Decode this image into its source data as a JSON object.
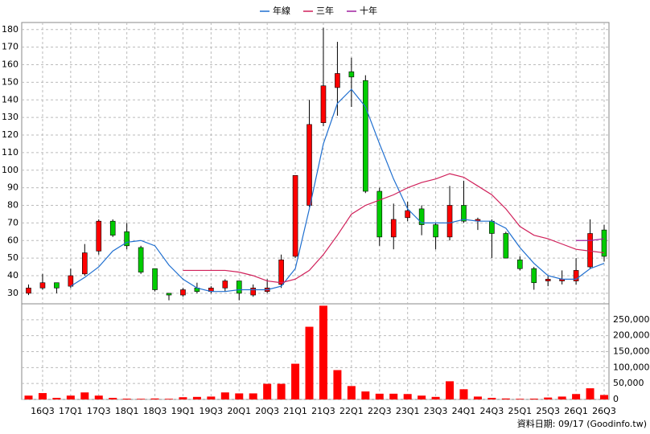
{
  "chart_data": [
    {
      "type": "candlestick",
      "categories": [
        null,
        "16Q3",
        null,
        "17Q1",
        null,
        "17Q3",
        null,
        "18Q1",
        null,
        "18Q3",
        null,
        "19Q1",
        null,
        "19Q3",
        null,
        "20Q1",
        null,
        "20Q3",
        null,
        "21Q1",
        null,
        "21Q3",
        null,
        "22Q1",
        null,
        "22Q3",
        null,
        "23Q1",
        null,
        "23Q3",
        null,
        "24Q1",
        null,
        "24Q3",
        null,
        "25Q1",
        null,
        "25Q3",
        null,
        "26Q1",
        null,
        "26Q3"
      ],
      "open": [
        30,
        33,
        36,
        34,
        41,
        54,
        71,
        65,
        56,
        44,
        30,
        29,
        33,
        31,
        33,
        37,
        29,
        31,
        35,
        51,
        80,
        127,
        147,
        156,
        151,
        88,
        62,
        73,
        78,
        69,
        62,
        80,
        71,
        71,
        64,
        49,
        44,
        37,
        37,
        37,
        45,
        66
      ],
      "high": [
        35,
        41,
        36,
        44,
        58,
        72,
        72,
        70,
        57,
        44,
        30,
        33,
        36,
        34,
        38,
        37,
        35,
        38,
        52,
        97,
        140,
        181,
        173,
        164,
        154,
        90,
        81,
        82,
        80,
        70,
        91,
        94,
        73,
        72,
        65,
        51,
        45,
        40,
        43,
        50,
        72,
        69
      ],
      "low": [
        29,
        32,
        30,
        33,
        40,
        52,
        62,
        55,
        41,
        31,
        26,
        28,
        30,
        30,
        31,
        26,
        28,
        30,
        33,
        50,
        79,
        125,
        131,
        136,
        87,
        57,
        55,
        71,
        63,
        55,
        60,
        70,
        66,
        50,
        50,
        43,
        32,
        34,
        35,
        35,
        44,
        48
      ],
      "close": [
        33,
        36,
        33,
        40,
        53,
        71,
        63,
        57,
        42,
        32,
        29,
        32,
        31,
        33,
        37,
        30,
        33,
        33,
        49,
        97,
        126,
        148,
        155,
        153,
        88,
        62,
        72,
        77,
        69,
        62,
        80,
        71,
        72,
        64,
        50,
        44,
        36,
        38,
        38,
        43,
        64,
        51
      ],
      "up_color": "#ff0000",
      "down_color": "#00cc00",
      "series": [
        {
          "name": "年線",
          "color": "#1f6fd0",
          "values": [
            null,
            null,
            null,
            34,
            39,
            45,
            54,
            59,
            60,
            57,
            46,
            38,
            33,
            31,
            31,
            32,
            32,
            32,
            34,
            44,
            78,
            115,
            138,
            146,
            136,
            115,
            95,
            78,
            70,
            70,
            70,
            72,
            71,
            71,
            67,
            56,
            47,
            40,
            38,
            38,
            44,
            47
          ]
        },
        {
          "name": "三年",
          "color": "#d0205a",
          "values": [
            null,
            null,
            null,
            null,
            null,
            null,
            null,
            null,
            null,
            null,
            null,
            43,
            43,
            43,
            43,
            42,
            40,
            37,
            36,
            38,
            43,
            52,
            63,
            75,
            80,
            83,
            86,
            90,
            93,
            95,
            98,
            96,
            91,
            86,
            78,
            68,
            63,
            61,
            58,
            55,
            54,
            53
          ]
        },
        {
          "name": "十年",
          "color": "#a020a0",
          "values": [
            null,
            null,
            null,
            null,
            null,
            null,
            null,
            null,
            null,
            null,
            null,
            null,
            null,
            null,
            null,
            null,
            null,
            null,
            null,
            null,
            null,
            null,
            null,
            null,
            null,
            null,
            null,
            null,
            null,
            null,
            null,
            null,
            null,
            null,
            null,
            null,
            null,
            null,
            null,
            60,
            60,
            61
          ]
        }
      ],
      "ylim": [
        24,
        184
      ],
      "yticks": [
        30,
        40,
        50,
        60,
        70,
        80,
        90,
        100,
        110,
        120,
        130,
        140,
        150,
        160,
        170,
        180
      ],
      "grid": true
    },
    {
      "type": "bar",
      "color": "#ff0000",
      "values": [
        12000,
        20000,
        5000,
        12000,
        22000,
        12000,
        5000,
        2500,
        2000,
        3000,
        2000,
        7000,
        8000,
        9000,
        22000,
        19000,
        19000,
        49000,
        49000,
        112000,
        228000,
        294000,
        92000,
        42000,
        25000,
        18000,
        18000,
        17000,
        12000,
        8000,
        57000,
        32000,
        9000,
        5000,
        3000,
        2000,
        2500,
        6000,
        9000,
        17000,
        35000,
        14000
      ],
      "ylim": [
        0,
        300000
      ],
      "yticks": [
        0,
        {
          "value": 50000,
          "label": "50,000"
        },
        {
          "value": 100000,
          "label": "100,000"
        },
        {
          "value": 150000,
          "label": "150,000"
        },
        {
          "value": 200000,
          "label": "200,000"
        },
        {
          "value": 250000,
          "label": "250,000"
        }
      ],
      "grid": true
    }
  ],
  "footer": "資料日期: 09/17 (Goodinfo.tw)"
}
